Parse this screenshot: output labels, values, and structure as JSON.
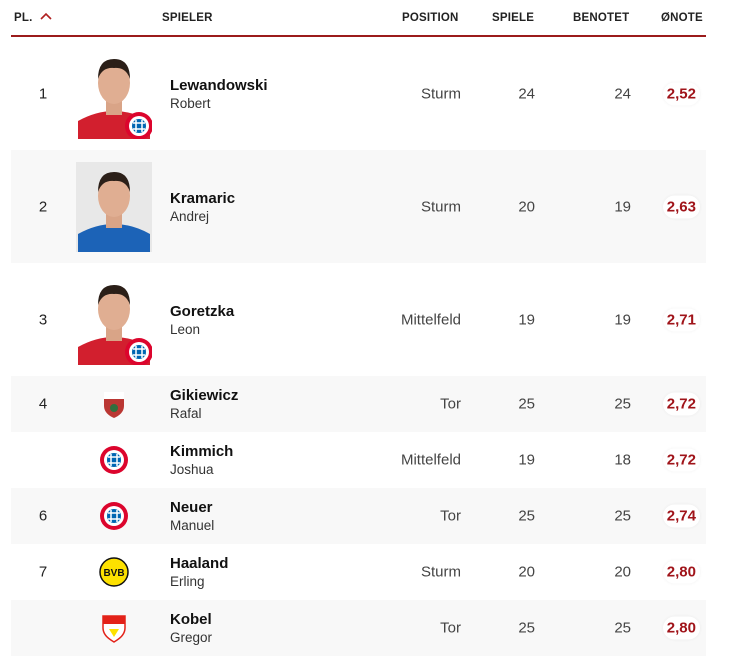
{
  "header": {
    "rank": "PL.",
    "player": "SPIELER",
    "position": "POSITION",
    "games": "SPIELE",
    "rated": "BENOTET",
    "avg": "ØNOTE",
    "sort_icon": "chevron-up-icon",
    "accent": "#9b1b1b"
  },
  "rows": [
    {
      "rank": "1",
      "last": "Lewandowski",
      "first": "Robert",
      "position": "Sturm",
      "games": "24",
      "rated": "24",
      "avg": "2,52",
      "club": "bayern",
      "photo": true
    },
    {
      "rank": "2",
      "last": "Kramaric",
      "first": "Andrej",
      "position": "Sturm",
      "games": "20",
      "rated": "19",
      "avg": "2,63",
      "club": "hoffenheim",
      "photo": true
    },
    {
      "rank": "3",
      "last": "Goretzka",
      "first": "Leon",
      "position": "Mittelfeld",
      "games": "19",
      "rated": "19",
      "avg": "2,71",
      "club": "bayern",
      "photo": true
    },
    {
      "rank": "4",
      "last": "Gikiewicz",
      "first": "Rafal",
      "position": "Tor",
      "games": "25",
      "rated": "25",
      "avg": "2,72",
      "club": "augsburg",
      "photo": false
    },
    {
      "rank": "",
      "last": "Kimmich",
      "first": "Joshua",
      "position": "Mittelfeld",
      "games": "19",
      "rated": "18",
      "avg": "2,72",
      "club": "bayern",
      "photo": false
    },
    {
      "rank": "6",
      "last": "Neuer",
      "first": "Manuel",
      "position": "Tor",
      "games": "25",
      "rated": "25",
      "avg": "2,74",
      "club": "bayern",
      "photo": false
    },
    {
      "rank": "7",
      "last": "Haaland",
      "first": "Erling",
      "position": "Sturm",
      "games": "20",
      "rated": "20",
      "avg": "2,80",
      "club": "dortmund",
      "photo": false
    },
    {
      "rank": "",
      "last": "Kobel",
      "first": "Gregor",
      "position": "Tor",
      "games": "25",
      "rated": "25",
      "avg": "2,80",
      "club": "stuttgart",
      "photo": false
    }
  ],
  "colors": {
    "note": "#a0141a",
    "row_alt": "#f8f8f8"
  }
}
